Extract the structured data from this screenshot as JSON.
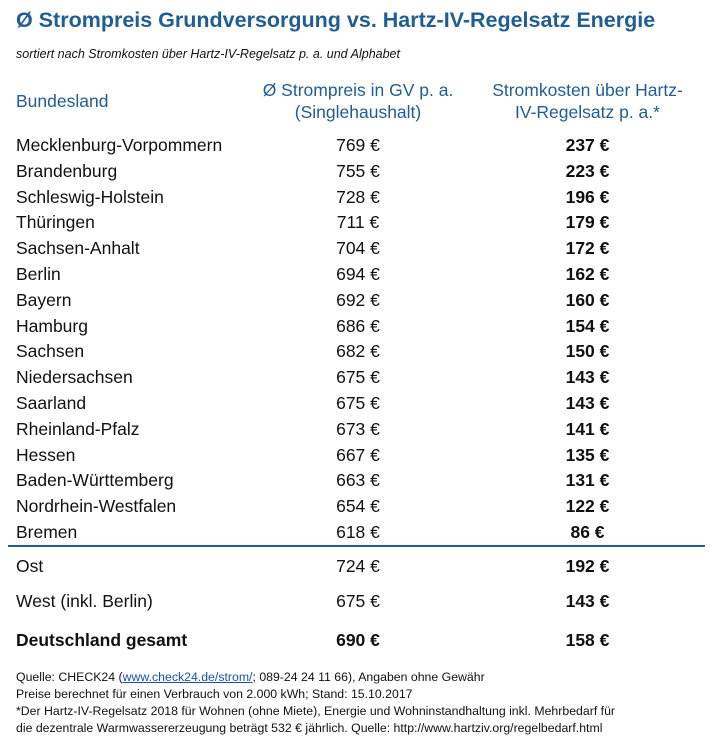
{
  "title": "Ø Strompreis Grundversorgung vs. Hartz-IV-Regelsatz Energie",
  "subtitle": "sortiert nach Stromkosten über Hartz-IV-Regelsatz p. a. und Alphabet",
  "headers": {
    "region": "Bundesland",
    "price_line1": "Ø Strompreis in GV p. a.",
    "price_line2": "(Singlehaushalt)",
    "cost_line1": "Stromkosten über Hartz-",
    "cost_line2": "IV-Regelsatz p. a.*"
  },
  "rows": [
    {
      "region": "Mecklenburg-Vorpommern",
      "price": "769 €",
      "cost": "237 €"
    },
    {
      "region": "Brandenburg",
      "price": "755 €",
      "cost": "223 €"
    },
    {
      "region": "Schleswig-Holstein",
      "price": "728 €",
      "cost": "196 €"
    },
    {
      "region": "Thüringen",
      "price": "711 €",
      "cost": "179 €"
    },
    {
      "region": "Sachsen-Anhalt",
      "price": "704 €",
      "cost": "172 €"
    },
    {
      "region": "Berlin",
      "price": "694 €",
      "cost": "162 €"
    },
    {
      "region": "Bayern",
      "price": "692 €",
      "cost": "160 €"
    },
    {
      "region": "Hamburg",
      "price": "686 €",
      "cost": "154 €"
    },
    {
      "region": "Sachsen",
      "price": "682 €",
      "cost": "150 €"
    },
    {
      "region": "Niedersachsen",
      "price": "675 €",
      "cost": "143 €"
    },
    {
      "region": "Saarland",
      "price": "675 €",
      "cost": "143 €"
    },
    {
      "region": "Rheinland-Pfalz",
      "price": "673 €",
      "cost": "141 €"
    },
    {
      "region": "Hessen",
      "price": "667 €",
      "cost": "135 €"
    },
    {
      "region": "Baden-Württemberg",
      "price": "663 €",
      "cost": "131 €"
    },
    {
      "region": "Nordrhein-Westfalen",
      "price": "654 €",
      "cost": "122 €"
    },
    {
      "region": "Bremen",
      "price": "618 €",
      "cost": "86 €"
    }
  ],
  "summary": {
    "ost": {
      "region": "Ost",
      "price": "724 €",
      "cost": "192 €"
    },
    "west": {
      "region": "West (inkl. Berlin)",
      "price": "675 €",
      "cost": "143 €"
    },
    "de": {
      "region": "Deutschland gesamt",
      "price": "690 €",
      "cost": "158 €"
    }
  },
  "footer": {
    "source_prefix": "Quelle: CHECK24 (",
    "source_link": "www.check24.de/strom/",
    "source_suffix": "; 089-24 24 11 66), Angaben ohne Gewähr",
    "line2": "Preise berechnet für einen Verbrauch von 2.000 kWh; Stand: 15.10.2017",
    "line3": "*Der Hartz-IV-Regelsatz 2018 für Wohnen (ohne Miete), Energie und Wohninstandhaltung inkl. Mehrbedarf für",
    "line4": "die dezentrale Warmwassererzeugung beträgt 532 € jährlich. Quelle: http://www.hartziv.org/regelbedarf.html"
  },
  "colors": {
    "accent": "#1f5d94",
    "link": "#1a4fb8"
  }
}
